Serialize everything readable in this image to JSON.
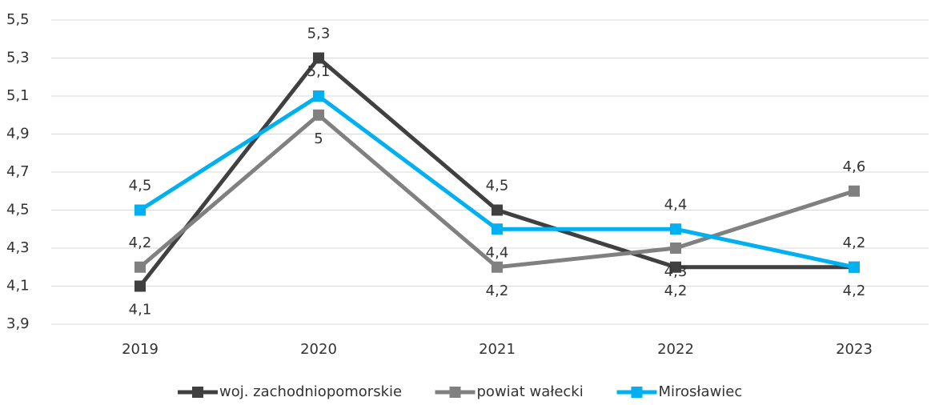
{
  "chart_data": {
    "type": "line",
    "categories": [
      "2019",
      "2020",
      "2021",
      "2022",
      "2023"
    ],
    "series": [
      {
        "name": "woj. zachodniopomorskie",
        "color": "#404040",
        "values": [
          4.1,
          5.3,
          4.5,
          4.2,
          4.2
        ],
        "value_labels": [
          "4,1",
          "5,3",
          "4,5",
          "4,2",
          "4,2"
        ]
      },
      {
        "name": "powiat wałecki",
        "color": "#808080",
        "values": [
          4.2,
          5,
          4.2,
          4.3,
          4.6
        ],
        "value_labels": [
          "4,2",
          "5",
          "4,2",
          "4,3",
          "4,6"
        ]
      },
      {
        "name": "Mirosławiec",
        "color": "#00b0f0",
        "values": [
          4.5,
          5.1,
          4.4,
          4.4,
          4.2
        ],
        "value_labels": [
          "4,5",
          "5,1",
          "4,4",
          "4,4",
          "4,2"
        ]
      }
    ],
    "ylim": [
      3.9,
      5.5
    ],
    "yticks": [
      {
        "value": 3.9,
        "label": "3,9"
      },
      {
        "value": 4.1,
        "label": "4,1"
      },
      {
        "value": 4.3,
        "label": "4,3"
      },
      {
        "value": 4.5,
        "label": "4,5"
      },
      {
        "value": 4.7,
        "label": "4,7"
      },
      {
        "value": 4.9,
        "label": "4,9"
      },
      {
        "value": 5.1,
        "label": "5,1"
      },
      {
        "value": 5.3,
        "label": "5,3"
      },
      {
        "value": 5.5,
        "label": "5,5"
      }
    ],
    "grid": true,
    "legend": "bottom"
  }
}
